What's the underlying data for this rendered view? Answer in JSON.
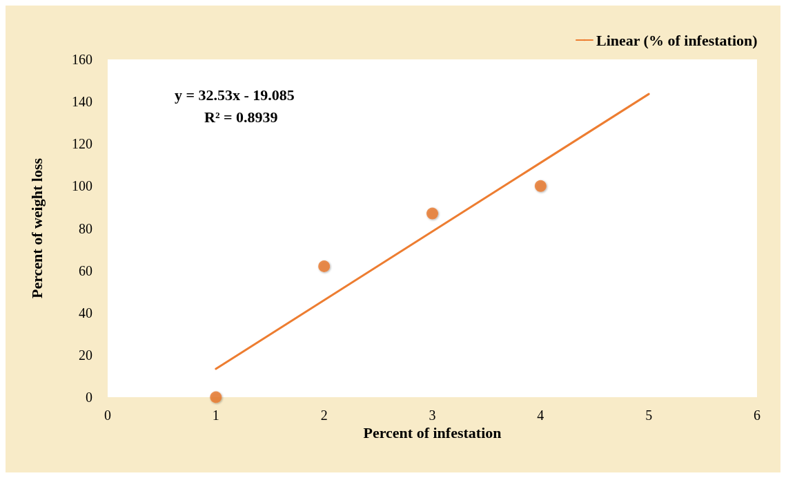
{
  "chart_data": {
    "type": "scatter",
    "xlabel": "Percent of infestation",
    "ylabel": "Percent of weight loss",
    "annotations": [
      "y = 32.53x - 19.085",
      "R² = 0.8939"
    ],
    "x": [
      1,
      2,
      3,
      4
    ],
    "marker": "circle",
    "series": [
      {
        "color": "#e8782a",
        "values": [
          0,
          62,
          87,
          100
        ]
      },
      {
        "name": "Linear (% of infestation)",
        "type": "line",
        "color": "#ed7d31",
        "x": [
          1,
          5
        ],
        "values": [
          13.4,
          143.6
        ],
        "marker": "none",
        "line_style": "solid"
      }
    ],
    "xlim": [
      0,
      6
    ],
    "xticks": [
      0,
      1,
      2,
      3,
      4,
      5,
      6
    ],
    "ylim": [
      0,
      160
    ],
    "yticks": [
      0,
      20,
      40,
      60,
      80,
      100,
      120,
      140,
      160
    ],
    "grid": false,
    "legend": "top right"
  }
}
